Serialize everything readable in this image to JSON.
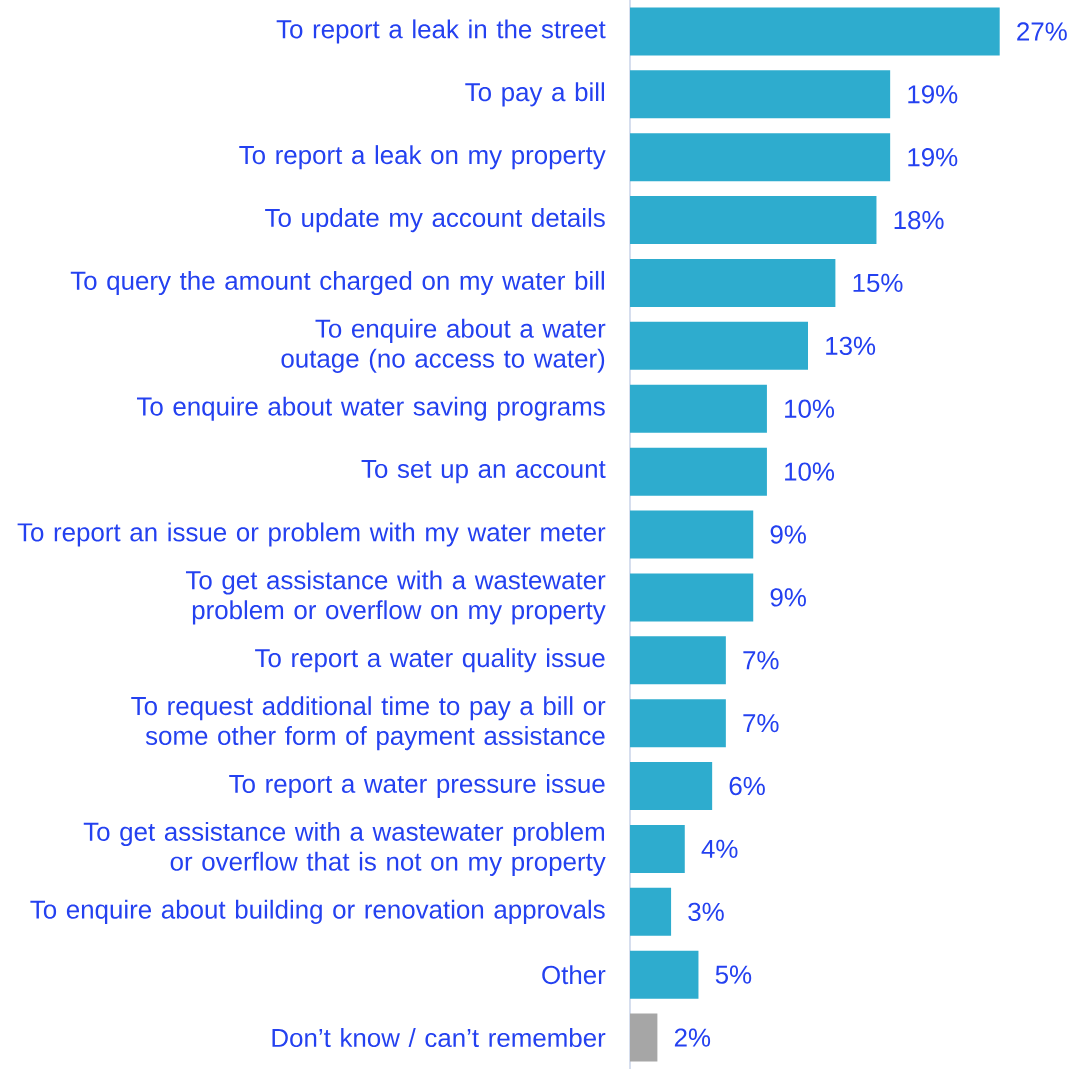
{
  "chart_data": {
    "type": "bar",
    "orientation": "horizontal",
    "categories": [
      "To report a leak in the street",
      "To pay a bill",
      "To report a leak on my property",
      "To update my account details",
      "To query the amount charged on my water bill",
      "To enquire about a water outage (no access to water)",
      "To enquire about water saving programs",
      "To set up an account",
      "To report an issue or problem with my water meter",
      "To get assistance with a wastewater problem or overflow on my property",
      "To report a water quality issue",
      "To request additional time to pay a bill or some other form of payment assistance",
      "To report a water pressure issue",
      "To get assistance with a wastewater problem or overflow that is not on my property",
      "To enquire about building or renovation approvals",
      "Other",
      "Don’t know / can’t remember"
    ],
    "values": [
      27,
      19,
      19,
      18,
      15,
      13,
      10,
      10,
      9,
      9,
      7,
      7,
      6,
      4,
      3,
      5,
      2
    ],
    "value_labels": [
      "27%",
      "19%",
      "19%",
      "18%",
      "15%",
      "13%",
      "10%",
      "10%",
      "9%",
      "9%",
      "7%",
      "7%",
      "6%",
      "4%",
      "3%",
      "5%",
      "2%"
    ],
    "colors": [
      "#2eacce",
      "#2eacce",
      "#2eacce",
      "#2eacce",
      "#2eacce",
      "#2eacce",
      "#2eacce",
      "#2eacce",
      "#2eacce",
      "#2eacce",
      "#2eacce",
      "#2eacce",
      "#2eacce",
      "#2eacce",
      "#2eacce",
      "#2eacce",
      "#a6a6a6"
    ]
  }
}
